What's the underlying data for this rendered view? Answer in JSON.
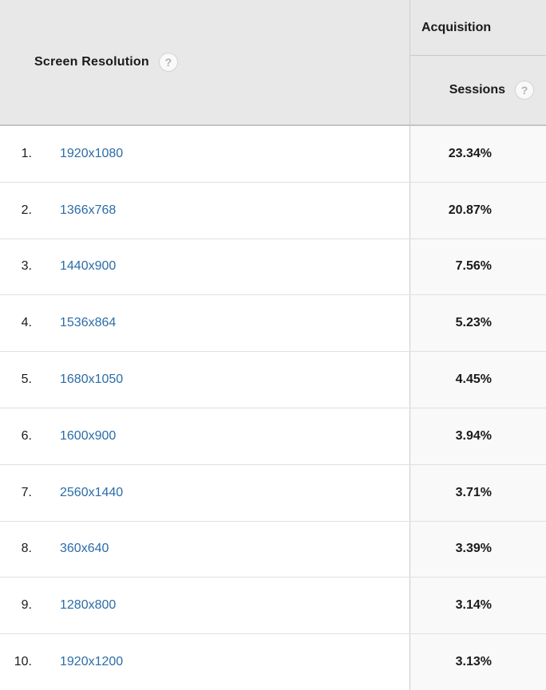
{
  "table": {
    "dimension_header": "Screen Resolution",
    "metric_group_header": "Acquisition",
    "metric_header": "Sessions",
    "help_icon_glyph": "?",
    "rows": [
      {
        "rank": "1.",
        "resolution": "1920x1080",
        "sessions": "23.34%"
      },
      {
        "rank": "2.",
        "resolution": "1366x768",
        "sessions": "20.87%"
      },
      {
        "rank": "3.",
        "resolution": "1440x900",
        "sessions": "7.56%"
      },
      {
        "rank": "4.",
        "resolution": "1536x864",
        "sessions": "5.23%"
      },
      {
        "rank": "5.",
        "resolution": "1680x1050",
        "sessions": "4.45%"
      },
      {
        "rank": "6.",
        "resolution": "1600x900",
        "sessions": "3.94%"
      },
      {
        "rank": "7.",
        "resolution": "2560x1440",
        "sessions": "3.71%"
      },
      {
        "rank": "8.",
        "resolution": "360x640",
        "sessions": "3.39%"
      },
      {
        "rank": "9.",
        "resolution": "1280x800",
        "sessions": "3.14%"
      },
      {
        "rank": "10.",
        "resolution": "1920x1200",
        "sessions": "3.13%"
      }
    ]
  },
  "colors": {
    "link_blue": "#2b6ca8",
    "header_background": "#e8e8e8",
    "metric_column_background": "#f9f9f9",
    "column_border": "#cccccc",
    "row_separator": "#e0e0e0",
    "text": "#1a1a1a"
  }
}
